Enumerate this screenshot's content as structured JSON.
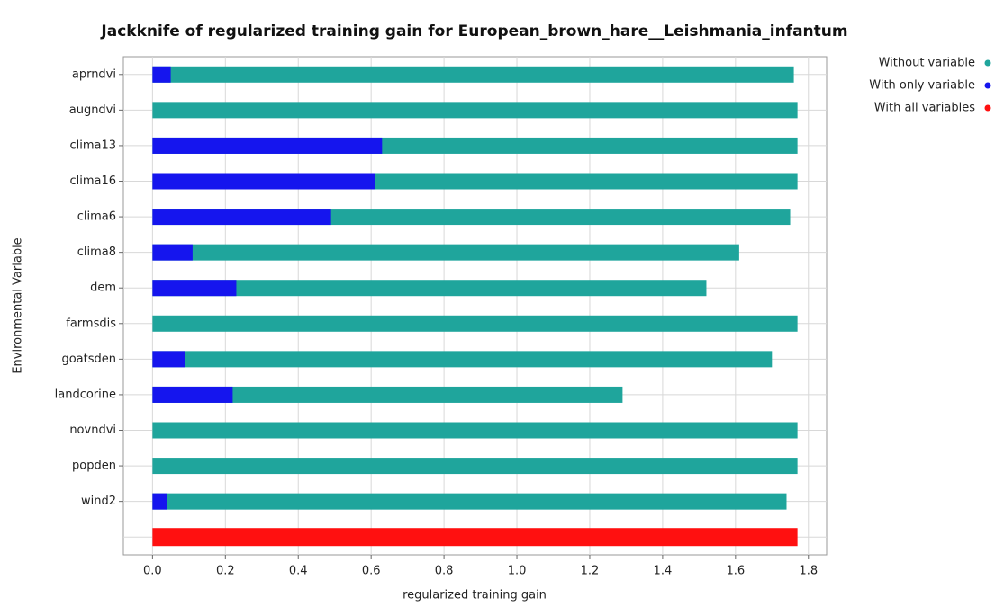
{
  "chart_data": {
    "type": "bar",
    "orientation": "horizontal",
    "title": "Jackknife of regularized training gain for European_brown_hare__Leishmania_infantum",
    "x_label": "regularized training gain",
    "y_label": "Environmental Variable",
    "categories": [
      "aprndvi",
      "augndvi",
      "clima13",
      "clima16",
      "clima6",
      "clima8",
      "dem",
      "farmsdis",
      "goatsden",
      "landcorine",
      "novndvi",
      "popden",
      "wind2",
      null
    ],
    "series": [
      {
        "name": "Without variable",
        "color": "#1fa59c",
        "values": [
          1.76,
          1.77,
          1.77,
          1.77,
          1.75,
          1.61,
          1.52,
          1.77,
          1.7,
          1.29,
          1.77,
          1.77,
          1.74,
          null
        ]
      },
      {
        "name": "With only variable",
        "color": "#1515ee",
        "values": [
          0.05,
          0.0,
          0.63,
          0.61,
          0.49,
          0.11,
          0.23,
          0.0,
          0.09,
          0.22,
          0.0,
          0.0,
          0.04,
          null
        ]
      },
      {
        "name": "With all variables",
        "color": "#ff1010",
        "values": [
          null,
          null,
          null,
          null,
          null,
          null,
          null,
          null,
          null,
          null,
          null,
          null,
          null,
          1.77
        ]
      }
    ],
    "xlim": [
      -0.08,
      1.85
    ],
    "xticks": [
      {
        "value": 0,
        "label": "0.0"
      },
      0.2,
      0.4,
      0.6,
      0.8,
      {
        "value": 1,
        "label": "1.0"
      },
      1.2,
      1.4,
      1.6,
      1.8
    ],
    "grid": true,
    "legend": "top-right"
  }
}
